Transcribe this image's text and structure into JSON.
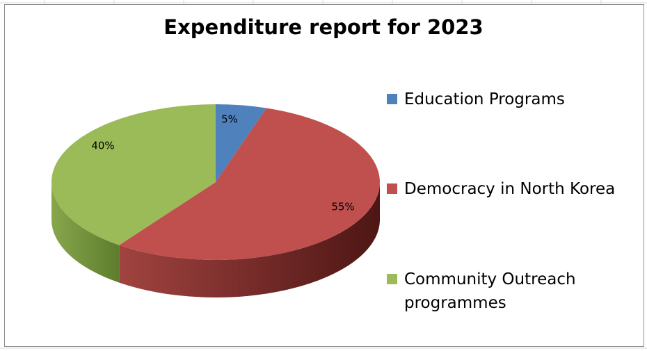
{
  "chart_data": {
    "type": "pie",
    "title": "Expenditure report for 2023",
    "categories": [
      "Education Programs",
      "Democracy in North Korea",
      "Community Outreach programmes"
    ],
    "values": [
      5,
      55,
      40
    ],
    "data_labels": [
      "5%",
      "55%",
      "40%"
    ],
    "colors": [
      "#4f81bd",
      "#c0504d",
      "#9bbb59"
    ],
    "side_colors": [
      "#2f5b8f",
      "#7a2523",
      "#6b8c36"
    ],
    "legend_placement": "right",
    "style": "3d"
  }
}
